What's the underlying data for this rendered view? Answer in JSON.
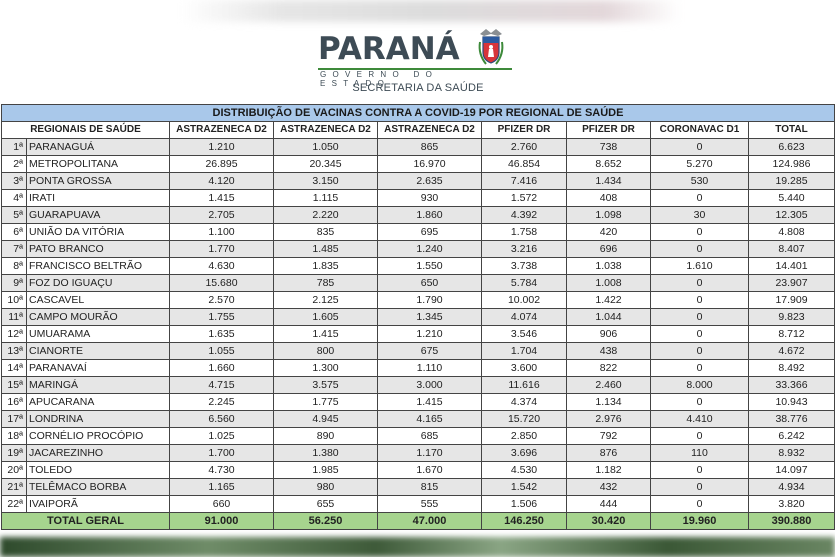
{
  "header": {
    "brand": "PARANÁ",
    "subtitle": "GOVERNO DO ESTADO",
    "department": "SECRETARIA DA SAÚDE"
  },
  "table": {
    "title": "DISTRIBUIÇÃO DE VACINAS CONTRA A COVID-19 POR REGIONAL DE SAÚDE",
    "columns": [
      "REGIONAIS DE SAÚDE",
      "ASTRAZENECA D2",
      "ASTRAZENECA D2",
      "ASTRAZENECA D2",
      "PFIZER DR",
      "PFIZER DR",
      "CORONAVAC D1",
      "TOTAL"
    ],
    "rows": [
      {
        "rank": "1ª",
        "name": "PARANAGUÁ",
        "values": [
          "1.210",
          "1.050",
          "865",
          "2.760",
          "738",
          "0",
          "6.623"
        ]
      },
      {
        "rank": "2ª",
        "name": "METROPOLITANA",
        "values": [
          "26.895",
          "20.345",
          "16.970",
          "46.854",
          "8.652",
          "5.270",
          "124.986"
        ]
      },
      {
        "rank": "3ª",
        "name": "PONTA GROSSA",
        "values": [
          "4.120",
          "3.150",
          "2.635",
          "7.416",
          "1.434",
          "530",
          "19.285"
        ]
      },
      {
        "rank": "4ª",
        "name": "IRATI",
        "values": [
          "1.415",
          "1.115",
          "930",
          "1.572",
          "408",
          "0",
          "5.440"
        ]
      },
      {
        "rank": "5ª",
        "name": "GUARAPUAVA",
        "values": [
          "2.705",
          "2.220",
          "1.860",
          "4.392",
          "1.098",
          "30",
          "12.305"
        ]
      },
      {
        "rank": "6ª",
        "name": "UNIÃO DA VITÓRIA",
        "values": [
          "1.100",
          "835",
          "695",
          "1.758",
          "420",
          "0",
          "4.808"
        ]
      },
      {
        "rank": "7ª",
        "name": "PATO BRANCO",
        "values": [
          "1.770",
          "1.485",
          "1.240",
          "3.216",
          "696",
          "0",
          "8.407"
        ]
      },
      {
        "rank": "8ª",
        "name": "FRANCISCO BELTRÃO",
        "values": [
          "4.630",
          "1.835",
          "1.550",
          "3.738",
          "1.038",
          "1.610",
          "14.401"
        ]
      },
      {
        "rank": "9ª",
        "name": "FOZ DO IGUAÇU",
        "values": [
          "15.680",
          "785",
          "650",
          "5.784",
          "1.008",
          "0",
          "23.907"
        ]
      },
      {
        "rank": "10ª",
        "name": "CASCAVEL",
        "values": [
          "2.570",
          "2.125",
          "1.790",
          "10.002",
          "1.422",
          "0",
          "17.909"
        ]
      },
      {
        "rank": "11ª",
        "name": "CAMPO MOURÃO",
        "values": [
          "1.755",
          "1.605",
          "1.345",
          "4.074",
          "1.044",
          "0",
          "9.823"
        ]
      },
      {
        "rank": "12ª",
        "name": "UMUARAMA",
        "values": [
          "1.635",
          "1.415",
          "1.210",
          "3.546",
          "906",
          "0",
          "8.712"
        ]
      },
      {
        "rank": "13ª",
        "name": "CIANORTE",
        "values": [
          "1.055",
          "800",
          "675",
          "1.704",
          "438",
          "0",
          "4.672"
        ]
      },
      {
        "rank": "14ª",
        "name": "PARANAVAÍ",
        "values": [
          "1.660",
          "1.300",
          "1.110",
          "3.600",
          "822",
          "0",
          "8.492"
        ]
      },
      {
        "rank": "15ª",
        "name": "MARINGÁ",
        "values": [
          "4.715",
          "3.575",
          "3.000",
          "11.616",
          "2.460",
          "8.000",
          "33.366"
        ]
      },
      {
        "rank": "16ª",
        "name": "APUCARANA",
        "values": [
          "2.245",
          "1.775",
          "1.415",
          "4.374",
          "1.134",
          "0",
          "10.943"
        ]
      },
      {
        "rank": "17ª",
        "name": "LONDRINA",
        "values": [
          "6.560",
          "4.945",
          "4.165",
          "15.720",
          "2.976",
          "4.410",
          "38.776"
        ]
      },
      {
        "rank": "18ª",
        "name": "CORNÉLIO PROCÓPIO",
        "values": [
          "1.025",
          "890",
          "685",
          "2.850",
          "792",
          "0",
          "6.242"
        ]
      },
      {
        "rank": "19ª",
        "name": "JACAREZINHO",
        "values": [
          "1.700",
          "1.380",
          "1.170",
          "3.696",
          "876",
          "110",
          "8.932"
        ]
      },
      {
        "rank": "20ª",
        "name": "TOLEDO",
        "values": [
          "4.730",
          "1.985",
          "1.670",
          "4.530",
          "1.182",
          "0",
          "14.097"
        ]
      },
      {
        "rank": "21ª",
        "name": "TELÊMACO BORBA",
        "values": [
          "1.165",
          "980",
          "815",
          "1.542",
          "432",
          "0",
          "4.934"
        ]
      },
      {
        "rank": "22ª",
        "name": "IVAIPORÃ",
        "values": [
          "660",
          "655",
          "555",
          "1.506",
          "444",
          "0",
          "3.820"
        ]
      }
    ],
    "total": {
      "label": "TOTAL GERAL",
      "values": [
        "91.000",
        "56.250",
        "47.000",
        "146.250",
        "30.420",
        "19.960",
        "390.880"
      ]
    }
  },
  "colors": {
    "title_bg": "#a9c8ea",
    "total_bg": "#a6d48e",
    "stripe_bg": "#e6e6e6",
    "brand_text": "#3d4b55",
    "brand_line": "#3d8a3a"
  }
}
